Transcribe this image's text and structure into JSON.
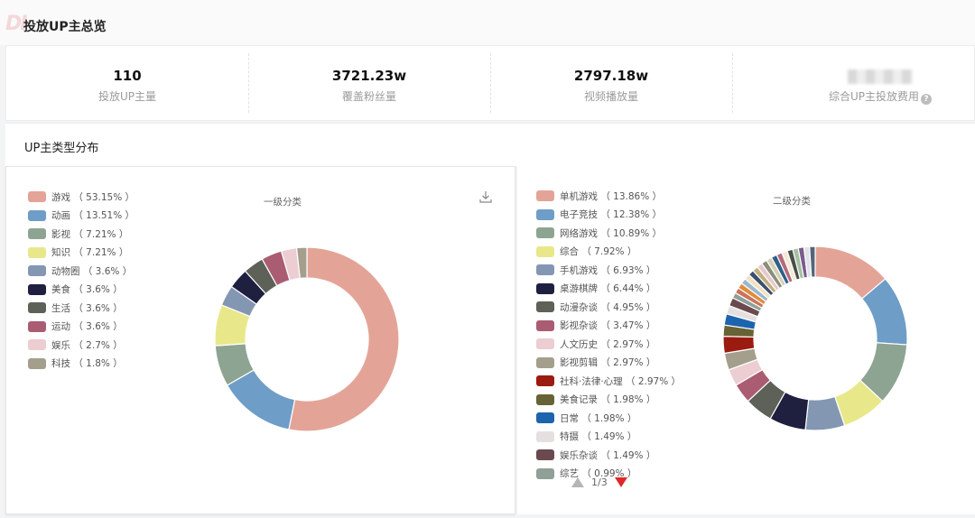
{
  "overview": {
    "title": "投放UP主总览",
    "stats": [
      {
        "value": "110",
        "label": "投放UP主量"
      },
      {
        "value": "3721.23w",
        "label": "覆盖粉丝量"
      },
      {
        "value": "2797.18w",
        "label": "视频播放量"
      },
      {
        "value": "",
        "label": "综合UP主投放费用"
      }
    ]
  },
  "distribution": {
    "title": "UP主类型分布"
  },
  "chart_data": [
    {
      "type": "pie",
      "title": "一级分类",
      "series": [
        {
          "name": "游戏",
          "value": 53.15,
          "pct": "53.15%",
          "color": "#e3a497"
        },
        {
          "name": "动画",
          "value": 13.51,
          "pct": "13.51%",
          "color": "#6e9dc7"
        },
        {
          "name": "影视",
          "value": 7.21,
          "pct": "7.21%",
          "color": "#8ea492"
        },
        {
          "name": "知识",
          "value": 7.21,
          "pct": "7.21%",
          "color": "#e8e88b"
        },
        {
          "name": "动物圈",
          "value": 3.6,
          "pct": "3.6%",
          "color": "#8397b3"
        },
        {
          "name": "美食",
          "value": 3.6,
          "pct": "3.6%",
          "color": "#1f2040"
        },
        {
          "name": "生活",
          "value": 3.6,
          "pct": "3.6%",
          "color": "#5d6158"
        },
        {
          "name": "运动",
          "value": 3.6,
          "pct": "3.6%",
          "color": "#a95c72"
        },
        {
          "name": "娱乐",
          "value": 2.7,
          "pct": "2.7%",
          "color": "#eccdd2"
        },
        {
          "name": "科技",
          "value": 1.8,
          "pct": "1.8%",
          "color": "#a49f8c"
        }
      ]
    },
    {
      "type": "pie",
      "title": "二级分类",
      "page": "1/3",
      "series": [
        {
          "name": "单机游戏",
          "value": 13.86,
          "pct": "13.86%",
          "color": "#e3a497"
        },
        {
          "name": "电子竞技",
          "value": 12.38,
          "pct": "12.38%",
          "color": "#6e9dc7"
        },
        {
          "name": "网络游戏",
          "value": 10.89,
          "pct": "10.89%",
          "color": "#8ea492"
        },
        {
          "name": "综合",
          "value": 7.92,
          "pct": "7.92%",
          "color": "#e8e88b"
        },
        {
          "name": "手机游戏",
          "value": 6.93,
          "pct": "6.93%",
          "color": "#8397b3"
        },
        {
          "name": "桌游棋牌",
          "value": 6.44,
          "pct": "6.44%",
          "color": "#1f2040"
        },
        {
          "name": "动漫杂谈",
          "value": 4.95,
          "pct": "4.95%",
          "color": "#5d6158"
        },
        {
          "name": "影视杂谈",
          "value": 3.47,
          "pct": "3.47%",
          "color": "#a95c72"
        },
        {
          "name": "人文历史",
          "value": 2.97,
          "pct": "2.97%",
          "color": "#eccdd2"
        },
        {
          "name": "影视剪辑",
          "value": 2.97,
          "pct": "2.97%",
          "color": "#a49f8c"
        },
        {
          "name": "社科·法律·心理",
          "value": 2.97,
          "pct": "2.97%",
          "color": "#9b1b10"
        },
        {
          "name": "美食记录",
          "value": 1.98,
          "pct": "1.98%",
          "color": "#676336"
        },
        {
          "name": "日常",
          "value": 1.98,
          "pct": "1.98%",
          "color": "#1d64ae"
        },
        {
          "name": "特摄",
          "value": 1.49,
          "pct": "1.49%",
          "color": "#e6dfe0"
        },
        {
          "name": "娱乐杂谈",
          "value": 1.49,
          "pct": "1.49%",
          "color": "#6a4a4e"
        },
        {
          "name": "综艺",
          "value": 0.99,
          "pct": "0.99%",
          "color": "#8fa098"
        }
      ],
      "other_slices": [
        {
          "value": 0.99,
          "color": "#c9745a"
        },
        {
          "value": 0.99,
          "color": "#e28b3a"
        },
        {
          "value": 0.99,
          "color": "#9cb7cd"
        },
        {
          "value": 0.99,
          "color": "#f0e2c2"
        },
        {
          "value": 0.99,
          "color": "#3d4f6e"
        },
        {
          "value": 0.99,
          "color": "#c2b17d"
        },
        {
          "value": 0.99,
          "color": "#e9c9ce"
        },
        {
          "value": 0.99,
          "color": "#8a8f7c"
        },
        {
          "value": 0.99,
          "color": "#d6d0b6"
        },
        {
          "value": 0.99,
          "color": "#2f5f8a"
        },
        {
          "value": 0.99,
          "color": "#b46b7c"
        },
        {
          "value": 0.99,
          "color": "#f3ead6"
        },
        {
          "value": 0.99,
          "color": "#4b4f4a"
        },
        {
          "value": 0.99,
          "color": "#a4c1a0"
        },
        {
          "value": 0.99,
          "color": "#7a5c8e"
        },
        {
          "value": 0.99,
          "color": "#dfe3e8"
        },
        {
          "value": 0.99,
          "color": "#55657a"
        }
      ]
    }
  ]
}
